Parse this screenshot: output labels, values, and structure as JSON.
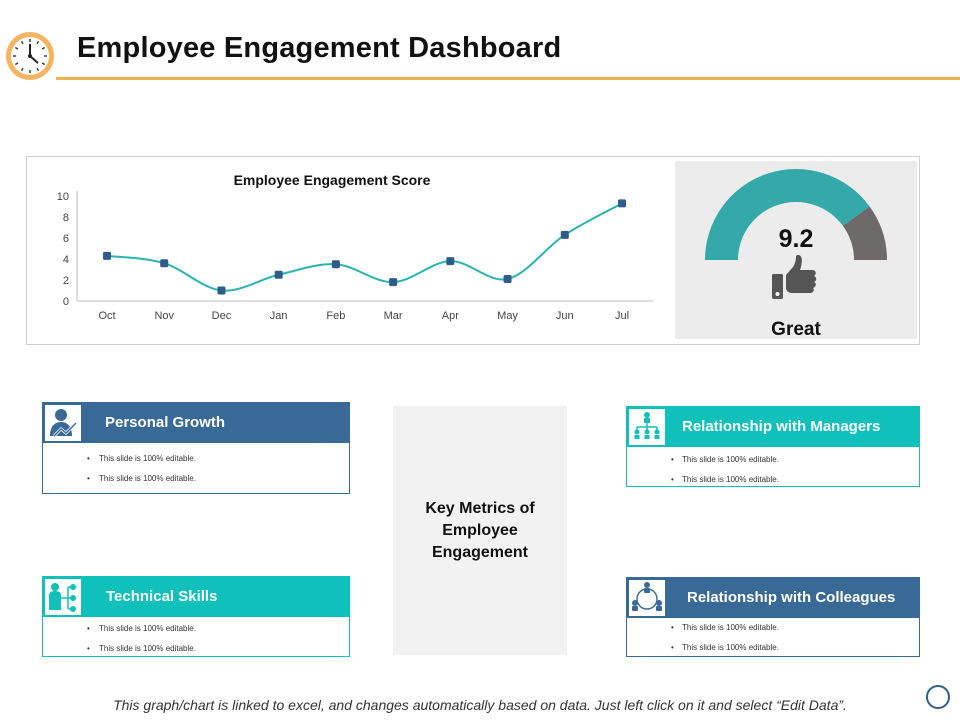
{
  "header": {
    "title": "Employee Engagement Dashboard",
    "accent_color": "#f0b155",
    "icon": "clock-icon"
  },
  "chart_data": {
    "type": "line",
    "title": "Employee Engagement Score",
    "categories": [
      "Oct",
      "Nov",
      "Dec",
      "Jan",
      "Feb",
      "Mar",
      "Apr",
      "May",
      "Jun",
      "Jul"
    ],
    "values": [
      4.3,
      3.6,
      1.0,
      2.5,
      3.5,
      1.8,
      3.8,
      2.1,
      6.3,
      9.3
    ],
    "ylim": [
      0,
      10
    ],
    "yticks": [
      "0",
      "2",
      "4",
      "6",
      "8",
      "10"
    ],
    "line_color": "#2ab3b3",
    "marker_color": "#2f5d8a",
    "grid": false
  },
  "gauge": {
    "value": "9.2",
    "fraction": 0.8,
    "label": "Great",
    "icon": "thumbs-up-icon",
    "fill_color": "#35a9aa",
    "rest_color": "#6e6a69"
  },
  "center": {
    "text": "Key Metrics of Employee Engagement"
  },
  "cards": {
    "personal_growth": {
      "title": "Personal Growth",
      "icon": "person-growth-icon",
      "color": "#396a97",
      "bullets": [
        "This slide is 100% editable.",
        "This slide is 100% editable."
      ]
    },
    "technical_skills": {
      "title": "Technical Skills",
      "icon": "person-network-icon",
      "color": "#0fc0bb",
      "bullets": [
        "This slide is 100% editable.",
        "This slide is 100% editable."
      ]
    },
    "managers": {
      "title": "Relationship with Managers",
      "icon": "org-chart-icon",
      "color": "#0fc0bb",
      "bullets": [
        "This slide is 100% editable.",
        "This slide is 100% editable."
      ]
    },
    "colleagues": {
      "title": "Relationship with Colleagues",
      "icon": "team-circle-icon",
      "color": "#396a97",
      "bullets": [
        "This slide is 100% editable.",
        "This slide is 100% editable."
      ]
    }
  },
  "footnote": "This graph/chart is linked to excel, and changes automatically based on data.  Just left click on it and select “Edit Data”."
}
